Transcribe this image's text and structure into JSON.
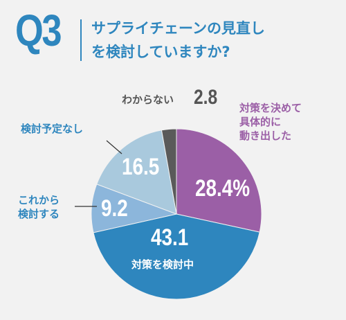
{
  "header": {
    "badge": "Q3",
    "question_line1": "サプライチェーンの見直し",
    "question_line2": "を検討していますか?"
  },
  "chart_data": {
    "type": "pie",
    "slices": [
      {
        "label_lines": [
          "対策を決めて",
          "具体的に",
          "動き出した"
        ],
        "value": 28.4,
        "value_text": "28.4%",
        "color": "#9b5fa6"
      },
      {
        "label_lines": [
          "対策を検討中"
        ],
        "value": 43.1,
        "value_text": "43.1",
        "color": "#2e86be"
      },
      {
        "label_lines": [
          "これから",
          "検討する"
        ],
        "value": 9.2,
        "value_text": "9.2",
        "color": "#8cb6db"
      },
      {
        "label_lines": [
          "検討予定なし"
        ],
        "value": 16.5,
        "value_text": "16.5",
        "color": "#a9c9dd"
      },
      {
        "label_lines": [
          "わからない"
        ],
        "value": 2.8,
        "value_text": "2.8",
        "color": "#5a5a5a"
      }
    ],
    "start_angle": "12 o'clock",
    "direction": "clockwise"
  }
}
